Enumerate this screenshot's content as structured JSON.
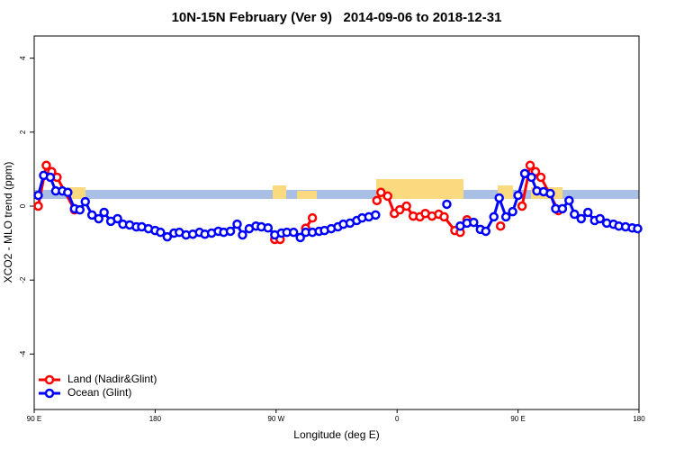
{
  "chart_data": {
    "type": "line",
    "title": "10N-15N February (Ver 9)   2014-09-06 to 2018-12-31",
    "x_label": "Longitude (deg E)",
    "y_label": "XCO2 - MLO trend (ppm)",
    "xlim": [
      90,
      540
    ],
    "xticks": [
      {
        "value": 90,
        "label": "90 E"
      },
      {
        "value": 180,
        "label": "180"
      },
      {
        "value": 270,
        "label": "90 W"
      },
      {
        "value": 360,
        "label": "0"
      },
      {
        "value": 450,
        "label": "90 E"
      },
      {
        "value": 540,
        "label": "180"
      }
    ],
    "ylim": [
      -5.5,
      4.6
    ],
    "yticks": [
      -4,
      -2,
      0,
      2,
      4
    ],
    "legend": "bottomleft",
    "series": [
      {
        "name": "Land (Nadir&Glint)",
        "color": "#ff0000",
        "x": [
          93,
          99,
          103,
          107,
          120,
          200,
          269,
          273,
          280,
          292,
          297,
          320,
          345,
          348,
          353,
          358,
          362,
          367,
          372,
          377,
          381,
          386,
          391,
          395,
          403,
          407,
          412,
          425,
          437,
          445,
          453,
          459,
          463,
          467,
          480
        ],
        "values": [
          0,
          1.1,
          0.93,
          0.78,
          -0.1,
          null,
          -0.9,
          -0.9,
          null,
          -0.6,
          -0.32,
          null,
          0.15,
          0.37,
          0.27,
          -0.2,
          -0.1,
          0,
          -0.27,
          -0.29,
          -0.2,
          -0.27,
          -0.22,
          -0.29,
          -0.66,
          -0.71,
          -0.37,
          null,
          -0.54,
          null,
          0,
          1.1,
          0.93,
          0.78,
          -0.12
        ]
      },
      {
        "name": "Ocean (Glint)",
        "color": "#0000ff",
        "x": [
          93,
          97,
          102,
          106,
          111,
          115,
          120,
          124,
          128,
          133,
          138,
          142,
          147,
          152,
          156,
          161,
          166,
          170,
          175,
          180,
          184,
          189,
          194,
          198,
          203,
          208,
          213,
          217,
          222,
          227,
          231,
          236,
          241,
          245,
          250,
          255,
          259,
          264,
          269,
          274,
          278,
          283,
          288,
          292,
          297,
          302,
          306,
          311,
          316,
          320,
          325,
          330,
          334,
          339,
          344,
          370,
          397,
          402,
          407,
          412,
          417,
          422,
          426,
          432,
          436,
          441,
          446,
          450,
          455,
          460,
          464,
          469,
          474,
          478,
          483,
          488,
          492,
          497,
          502,
          507,
          511,
          516,
          521,
          525,
          530,
          535,
          539
        ],
        "values": [
          0.29,
          0.83,
          0.78,
          0.41,
          0.41,
          0.37,
          -0.07,
          -0.1,
          0.12,
          -0.24,
          -0.34,
          -0.17,
          -0.41,
          -0.34,
          -0.49,
          -0.51,
          -0.56,
          -0.56,
          -0.61,
          -0.66,
          -0.71,
          -0.83,
          -0.73,
          -0.71,
          -0.78,
          -0.76,
          -0.71,
          -0.76,
          -0.73,
          -0.68,
          -0.71,
          -0.68,
          -0.49,
          -0.78,
          -0.61,
          -0.54,
          -0.56,
          -0.59,
          -0.78,
          -0.73,
          -0.71,
          -0.71,
          -0.85,
          -0.71,
          -0.71,
          -0.68,
          -0.66,
          -0.61,
          -0.56,
          -0.49,
          -0.46,
          -0.39,
          -0.32,
          -0.29,
          -0.24,
          null,
          0.05,
          null,
          -0.54,
          -0.46,
          -0.44,
          -0.63,
          -0.68,
          -0.29,
          0.22,
          -0.29,
          -0.15,
          0.29,
          0.88,
          0.78,
          0.41,
          0.39,
          0.34,
          -0.07,
          -0.07,
          0.15,
          -0.22,
          -0.34,
          -0.17,
          -0.39,
          -0.34,
          -0.46,
          -0.49,
          -0.54,
          -0.56,
          -0.59,
          -0.61
        ]
      }
    ]
  }
}
